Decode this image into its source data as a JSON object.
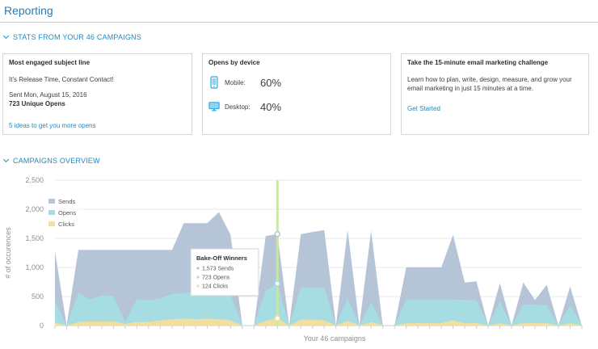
{
  "header": {
    "title": "Reporting"
  },
  "stats_section": {
    "title": "STATS FROM YOUR 46 CAMPAIGNS"
  },
  "cards": {
    "engaged": {
      "title": "Most engaged subject line",
      "subject": "It's Release Time, Constant Contact!",
      "sent": "Sent Mon, August 15, 2016",
      "opens": "723 Unique Opens",
      "link": "5 ideas to get you more opens"
    },
    "device": {
      "title": "Opens by device",
      "mobile_label": "Mobile:",
      "mobile_value": "60%",
      "desktop_label": "Desktop:",
      "desktop_value": "40%",
      "mobile_icon": "mobile-phone-icon",
      "desktop_icon": "desktop-monitor-icon"
    },
    "challenge": {
      "title": "Take the 15-minute email marketing challenge",
      "text": "Learn how to plan, write, design, measure, and grow your email marketing in just 15 minutes at a time.",
      "link": "Get Started"
    }
  },
  "overview_section": {
    "title": "CAMPAIGNS OVERVIEW"
  },
  "chart_data": {
    "type": "area",
    "xlabel": "Your 46 campaigns",
    "ylabel": "# of occurences",
    "ylim": [
      0,
      2500
    ],
    "yticks": [
      0,
      500,
      1000,
      1500,
      2000,
      2500
    ],
    "ytick_labels": [
      "0",
      "500",
      "1,000",
      "1,500",
      "2,000",
      "2,500"
    ],
    "grid": true,
    "legend_position": "top-left",
    "x": [
      1,
      2,
      3,
      4,
      5,
      6,
      7,
      8,
      9,
      10,
      11,
      12,
      13,
      14,
      15,
      16,
      17,
      18,
      19,
      20,
      21,
      22,
      23,
      24,
      25,
      26,
      27,
      28,
      29,
      30,
      31,
      32,
      33,
      34,
      35,
      36,
      37,
      38,
      39,
      40,
      41,
      42,
      43,
      44,
      45,
      46
    ],
    "series": [
      {
        "name": "Sends",
        "color": "#b5c4d6",
        "values": [
          1280,
          0,
          1300,
          1300,
          1300,
          1300,
          1300,
          1300,
          1300,
          1300,
          1300,
          1760,
          1760,
          1760,
          1950,
          1560,
          0,
          0,
          1540,
          1573,
          0,
          1570,
          1610,
          1640,
          0,
          1640,
          0,
          1630,
          0,
          0,
          1000,
          1000,
          1000,
          1000,
          1560,
          740,
          760,
          0,
          730,
          0,
          740,
          440,
          700,
          0,
          670,
          0
        ]
      },
      {
        "name": "Opens",
        "color": "#a6dde3",
        "values": [
          420,
          0,
          560,
          450,
          520,
          500,
          60,
          460,
          430,
          470,
          540,
          560,
          580,
          570,
          560,
          530,
          0,
          0,
          600,
          723,
          0,
          650,
          650,
          650,
          0,
          470,
          0,
          400,
          0,
          0,
          450,
          450,
          450,
          450,
          450,
          440,
          440,
          0,
          410,
          0,
          360,
          360,
          350,
          0,
          350,
          0
        ]
      },
      {
        "name": "Clicks",
        "color": "#f3dea1",
        "values": [
          50,
          0,
          60,
          70,
          70,
          70,
          30,
          60,
          60,
          90,
          110,
          120,
          110,
          120,
          110,
          90,
          0,
          0,
          80,
          124,
          0,
          100,
          100,
          90,
          0,
          80,
          0,
          60,
          0,
          0,
          40,
          40,
          40,
          40,
          90,
          40,
          40,
          0,
          40,
          0,
          40,
          40,
          40,
          0,
          40,
          0
        ]
      }
    ],
    "highlight": {
      "index": 19,
      "color": "#c9e6a6"
    },
    "tooltip": {
      "title": "Bake-Off Winners",
      "rows": [
        "1,573 Sends",
        "723 Opens",
        "124 Clicks"
      ]
    }
  }
}
